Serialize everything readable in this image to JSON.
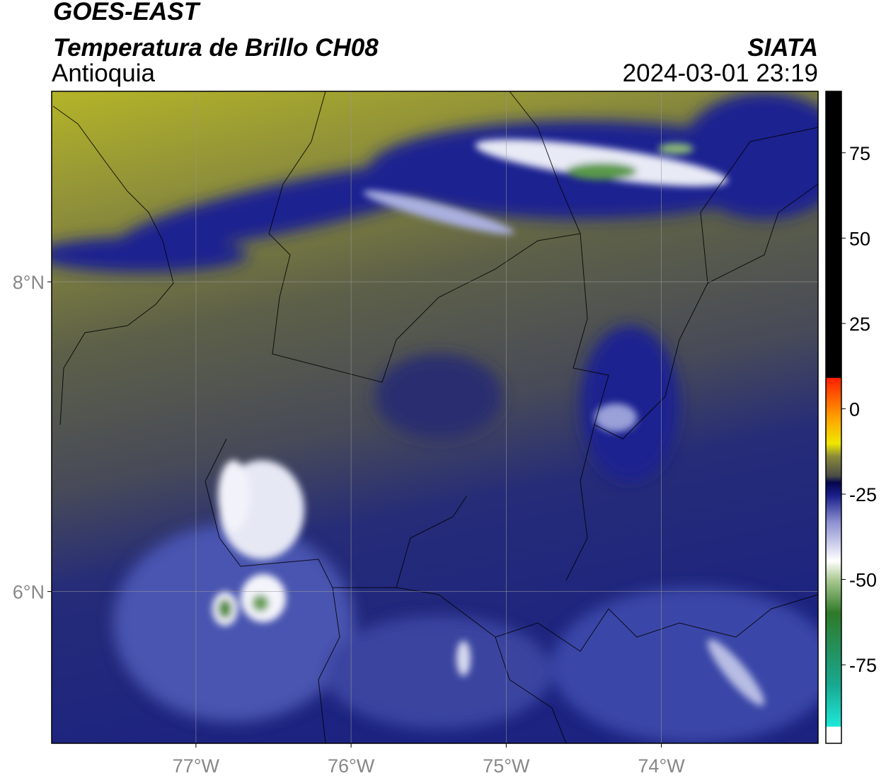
{
  "header": {
    "satellite": "GOES-EAST",
    "product": "Temperatura de Brillo CH08",
    "region": "Antioquia",
    "source": "SIATA",
    "datetime": "2024-03-01 23:19"
  },
  "map": {
    "xlim": [
      -77.93,
      -72.99
    ],
    "ylim": [
      5.02,
      9.23
    ],
    "xticks": [
      {
        "value": -77,
        "label": "77°W"
      },
      {
        "value": -76,
        "label": "76°W"
      },
      {
        "value": -75,
        "label": "75°W"
      },
      {
        "value": -74,
        "label": "74°W"
      }
    ],
    "yticks": [
      {
        "value": 6,
        "label": "6°N"
      },
      {
        "value": 8,
        "label": "8°N"
      }
    ],
    "grid": true
  },
  "colorbar": {
    "lim": [
      -98,
      93
    ],
    "ticks": [
      75,
      50,
      25,
      0,
      -25,
      -50,
      -75
    ]
  }
}
